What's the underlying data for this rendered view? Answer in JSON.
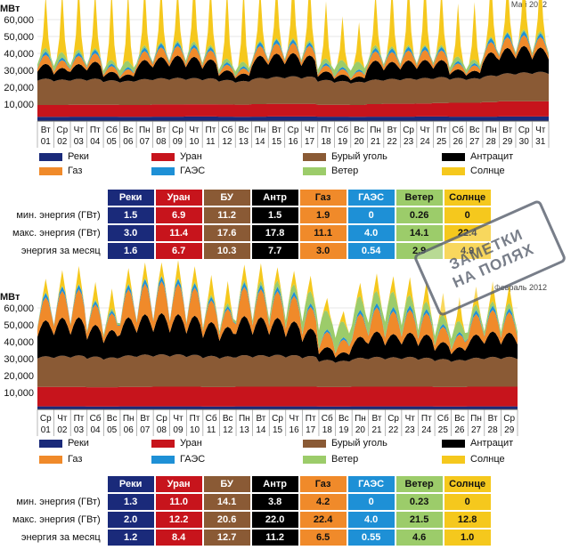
{
  "colors": {
    "rivers": "#1a2a7a",
    "uranium": "#c7141c",
    "lignite": "#8a5a35",
    "anthracite": "#000000",
    "gas": "#f08a2a",
    "pumped": "#1e90d6",
    "wind": "#9ccc6a",
    "solar": "#f5c81d"
  },
  "stamp": {
    "line1": "ЗАМЕТКИ",
    "line2": "НА ПОЛЯХ"
  },
  "stats_headers": [
    "Реки",
    "Уран",
    "БУ",
    "Антр",
    "Газ",
    "ГАЭС",
    "Ветер",
    "Солнце"
  ],
  "legend": {
    "rivers": "Реки",
    "uranium": "Уран",
    "lignite": "Бурый уголь",
    "anthracite": "Антрацит",
    "gas": "Газ",
    "pumped": "ГАЭС",
    "wind": "Ветер",
    "solar": "Солнце"
  },
  "stat_rows": {
    "min": "мин. энергия (ГВт)",
    "max": "макс. энергия (ГВт)",
    "month": "энергия за месяц"
  },
  "may": {
    "period": "Май 2012",
    "stats": {
      "min": [
        "1.5",
        "6.9",
        "11.2",
        "1.5",
        "1.9",
        "0",
        "0.26",
        "0"
      ],
      "max": [
        "3.0",
        "11.4",
        "17.6",
        "17.8",
        "11.1",
        "4.0",
        "14.1",
        "22.4"
      ],
      "month": [
        "1.6",
        "6.7",
        "10.3",
        "7.7",
        "3.0",
        "0.54",
        "2.9",
        "4.9"
      ]
    }
  },
  "feb": {
    "period": "Февраль 2012",
    "stats": {
      "min": [
        "1.3",
        "11.0",
        "14.1",
        "3.8",
        "4.2",
        "0",
        "0.23",
        "0"
      ],
      "max": [
        "2.0",
        "12.2",
        "20.6",
        "22.0",
        "22.4",
        "4.0",
        "21.5",
        "12.8"
      ],
      "month": [
        "1.2",
        "8.4",
        "12.7",
        "11.2",
        "6.5",
        "0.55",
        "4.6",
        "1.0"
      ]
    }
  },
  "chart_data": [
    {
      "type": "area",
      "title": "Май 2012",
      "ylabel": "МВт",
      "ylim": [
        0,
        70000
      ],
      "yticks": [
        "10,000",
        "20,000",
        "30,000",
        "40,000",
        "50,000",
        "60,000"
      ],
      "x_weekdays": [
        "Вт",
        "Ср",
        "Чт",
        "Пт",
        "Сб",
        "Вс",
        "Пн",
        "Вт",
        "Ср",
        "Чт",
        "Пт",
        "Сб",
        "Вс",
        "Пн",
        "Вт",
        "Ср",
        "Чт",
        "Пт",
        "Сб",
        "Вс",
        "Пн",
        "Вт",
        "Ср",
        "Чт",
        "Пт",
        "Сб",
        "Вс",
        "Пн",
        "Вт",
        "Ср",
        "Чт"
      ],
      "x_days": [
        "01",
        "02",
        "03",
        "04",
        "05",
        "06",
        "07",
        "08",
        "09",
        "10",
        "11",
        "12",
        "13",
        "14",
        "15",
        "16",
        "17",
        "18",
        "19",
        "20",
        "21",
        "22",
        "23",
        "24",
        "25",
        "26",
        "27",
        "28",
        "29",
        "30",
        "31"
      ],
      "series": [
        {
          "name": "Реки",
          "key": "rivers",
          "values": [
            2500,
            2500,
            2600,
            2600,
            2600,
            2500,
            2500,
            2600,
            2600,
            2700,
            2700,
            2600,
            2500,
            2600,
            2700,
            2700,
            2700,
            2600,
            2600,
            2500,
            2600,
            2600,
            2600,
            2700,
            2700,
            2600,
            2600,
            2600,
            2700,
            2700,
            2700
          ]
        },
        {
          "name": "Уран",
          "key": "uranium",
          "values": [
            7000,
            7000,
            7000,
            7000,
            7000,
            7000,
            7000,
            7200,
            7200,
            7200,
            7200,
            7200,
            7200,
            7400,
            7400,
            7400,
            7400,
            7000,
            7000,
            7000,
            7400,
            7600,
            7600,
            7600,
            8000,
            8200,
            8200,
            8600,
            9000,
            9000,
            9000
          ]
        },
        {
          "name": "Бурый уголь",
          "key": "lignite",
          "values": [
            15000,
            14500,
            14800,
            14900,
            14000,
            13800,
            14800,
            15000,
            15200,
            15000,
            14800,
            14000,
            13500,
            15000,
            15500,
            15800,
            15600,
            14200,
            13600,
            13200,
            14000,
            14300,
            14500,
            14700,
            14800,
            14200,
            14000,
            15200,
            16000,
            16500,
            16800
          ]
        },
        {
          "name": "Антрацит",
          "key": "anthracite",
          "values": [
            7000,
            5500,
            7000,
            8000,
            4000,
            3000,
            9000,
            10000,
            10500,
            10000,
            9000,
            4500,
            3500,
            10500,
            11000,
            11000,
            10000,
            4000,
            3000,
            2500,
            9000,
            8000,
            8500,
            8500,
            8000,
            4000,
            3500,
            11000,
            12000,
            12500,
            11500
          ]
        },
        {
          "name": "Газ",
          "key": "gas",
          "values": [
            3500,
            3000,
            3200,
            3300,
            2200,
            2000,
            3500,
            3800,
            3800,
            3600,
            3500,
            2200,
            2000,
            3800,
            4000,
            3900,
            3800,
            2300,
            2100,
            2000,
            3600,
            3800,
            3900,
            3900,
            3800,
            2300,
            2100,
            4000,
            4200,
            4200,
            4100
          ]
        },
        {
          "name": "ГАЭС",
          "key": "pumped",
          "values": [
            1200,
            1000,
            1200,
            1300,
            900,
            800,
            1300,
            1400,
            1300,
            1200,
            1200,
            900,
            800,
            1400,
            1400,
            1300,
            1200,
            900,
            800,
            700,
            1200,
            1300,
            1300,
            1300,
            1200,
            900,
            800,
            1400,
            1500,
            1500,
            1400
          ]
        },
        {
          "name": "Ветер",
          "key": "wind",
          "values": [
            2500,
            3500,
            2000,
            1200,
            2500,
            4000,
            1500,
            1000,
            1200,
            2000,
            1500,
            2500,
            3000,
            1000,
            800,
            900,
            1500,
            3000,
            4500,
            5000,
            2000,
            1500,
            1200,
            1000,
            1500,
            3000,
            2500,
            1000,
            800,
            1200,
            1500
          ]
        },
        {
          "name": "Солнце",
          "key": "solar",
          "values": [
            12000,
            14000,
            15000,
            13000,
            16000,
            16000,
            14000,
            13000,
            12000,
            15000,
            13500,
            16000,
            17000,
            12000,
            13000,
            15000,
            14000,
            13000,
            10000,
            9000,
            12000,
            14000,
            15000,
            15500,
            13000,
            12000,
            13000,
            14000,
            12000,
            13000,
            14000
          ]
        }
      ]
    },
    {
      "type": "area",
      "title": "Февраль 2012",
      "ylabel": "МВт",
      "ylim": [
        0,
        70000
      ],
      "yticks": [
        "10,000",
        "20,000",
        "30,000",
        "40,000",
        "50,000",
        "60,000"
      ],
      "x_weekdays": [
        "Ср",
        "Чт",
        "Пт",
        "Сб",
        "Вс",
        "Пн",
        "Вт",
        "Ср",
        "Чт",
        "Пт",
        "Сб",
        "Вс",
        "Пн",
        "Вт",
        "Ср",
        "Чт",
        "Пт",
        "Сб",
        "Вс",
        "Пн",
        "Вт",
        "Ср",
        "Чт",
        "Пт",
        "Сб",
        "Вс",
        "Пн",
        "Вт",
        "Ср"
      ],
      "x_days": [
        "01",
        "02",
        "03",
        "04",
        "05",
        "06",
        "07",
        "08",
        "09",
        "10",
        "11",
        "12",
        "13",
        "14",
        "15",
        "16",
        "17",
        "18",
        "19",
        "20",
        "21",
        "22",
        "23",
        "24",
        "25",
        "26",
        "27",
        "28",
        "29"
      ],
      "series": [
        {
          "name": "Реки",
          "key": "rivers",
          "values": [
            1800,
            1800,
            1800,
            1700,
            1700,
            1800,
            1800,
            1800,
            1800,
            1800,
            1700,
            1700,
            1800,
            1800,
            1800,
            1800,
            1800,
            1700,
            1700,
            1800,
            1800,
            1800,
            1800,
            1800,
            1700,
            1700,
            1800,
            1800,
            1800
          ]
        },
        {
          "name": "Уран",
          "key": "uranium",
          "values": [
            11500,
            11500,
            11500,
            11400,
            11400,
            11500,
            11500,
            11600,
            11600,
            11600,
            11500,
            11500,
            11600,
            11600,
            11600,
            11600,
            11600,
            11500,
            11500,
            11600,
            11600,
            11600,
            11600,
            11600,
            11500,
            11500,
            11600,
            11600,
            11600
          ]
        },
        {
          "name": "Бурый уголь",
          "key": "lignite",
          "values": [
            17500,
            17800,
            18000,
            17500,
            17000,
            18000,
            18500,
            18500,
            18500,
            18200,
            17800,
            17500,
            18000,
            18000,
            18200,
            18000,
            17500,
            15500,
            15000,
            16500,
            17000,
            16800,
            17000,
            16500,
            16000,
            15500,
            16500,
            17000,
            17000
          ]
        },
        {
          "name": "Антрацит",
          "key": "anthracite",
          "values": [
            17000,
            18000,
            18000,
            15000,
            13000,
            18000,
            19000,
            19500,
            19000,
            18500,
            16000,
            14000,
            18500,
            18000,
            17500,
            16000,
            13000,
            6000,
            4000,
            10000,
            12000,
            11000,
            11500,
            11000,
            8000,
            6000,
            11000,
            12000,
            11500
          ]
        },
        {
          "name": "Газ",
          "key": "gas",
          "values": [
            9000,
            10500,
            11000,
            8000,
            6500,
            11000,
            12000,
            12500,
            12000,
            11000,
            8500,
            7000,
            11500,
            11000,
            10500,
            10000,
            8500,
            6000,
            5000,
            9000,
            9500,
            9000,
            9000,
            8500,
            6000,
            5000,
            8000,
            8500,
            8000
          ]
        },
        {
          "name": "ГАЭС",
          "key": "pumped",
          "values": [
            1500,
            1600,
            1600,
            1200,
            1000,
            1600,
            1700,
            1700,
            1700,
            1600,
            1200,
            1000,
            1600,
            1600,
            1600,
            1500,
            1300,
            900,
            800,
            1400,
            1500,
            1500,
            1500,
            1400,
            1000,
            900,
            1400,
            1500,
            1400
          ]
        },
        {
          "name": "Ветер",
          "key": "wind",
          "values": [
            800,
            600,
            700,
            1000,
            1500,
            900,
            700,
            600,
            700,
            1000,
            1500,
            2000,
            1500,
            2500,
            4000,
            5000,
            8000,
            12000,
            10000,
            9000,
            8000,
            10000,
            7000,
            5000,
            6000,
            7000,
            4000,
            3000,
            3500
          ]
        },
        {
          "name": "Солнце",
          "key": "solar",
          "values": [
            3000,
            3500,
            4000,
            4000,
            4500,
            3500,
            3500,
            3000,
            4000,
            3500,
            4500,
            5000,
            3500,
            4000,
            3000,
            3000,
            3500,
            3000,
            2500,
            3000,
            4000,
            3500,
            4000,
            4500,
            5000,
            5500,
            4000,
            4500,
            4000
          ]
        }
      ]
    }
  ]
}
